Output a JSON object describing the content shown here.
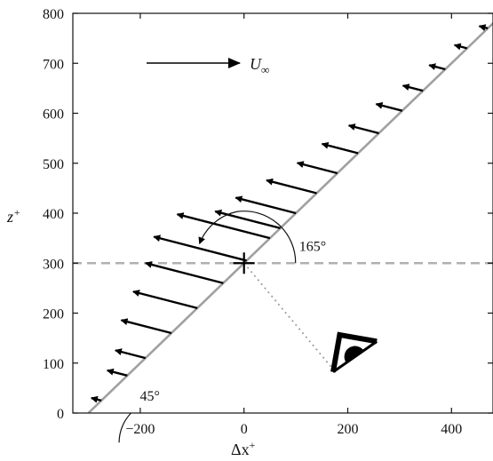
{
  "chart_data": {
    "type": "line",
    "xlabel_base": "Δx",
    "xlabel_sup": "+",
    "ylabel_base": "z",
    "ylabel_sup": "+",
    "xlim": [
      -330,
      480
    ],
    "ylim": [
      0,
      800
    ],
    "xticks": [
      -200,
      0,
      200,
      400
    ],
    "yticks": [
      0,
      100,
      200,
      300,
      400,
      500,
      600,
      700,
      800
    ],
    "xtick_labels": [
      "−200",
      "0",
      "200",
      "400"
    ],
    "ytick_labels": [
      "0",
      "100",
      "200",
      "300",
      "400",
      "500",
      "600",
      "700",
      "800"
    ],
    "grid": false,
    "inclined_line": {
      "points": [
        [
          -300,
          0
        ],
        [
          500,
          800
        ]
      ],
      "color": "#a0a0a0"
    },
    "reference_line": {
      "y": 300,
      "style": "dashed",
      "color": "#b0b0b0"
    },
    "center_marker": {
      "x": 0,
      "y": 300,
      "symbol": "+"
    },
    "freestream": {
      "label_base": "U",
      "label_sub": "∞",
      "direction": "+x"
    },
    "angle_annotations": [
      {
        "label": "45°",
        "vertex": [
          -300,
          0
        ]
      },
      {
        "label": "165°",
        "vertex": [
          0,
          300
        ]
      }
    ],
    "vectors": [
      {
        "z": 25,
        "length": 20
      },
      {
        "z": 75,
        "length": 40
      },
      {
        "z": 110,
        "length": 60
      },
      {
        "z": 160,
        "length": 100
      },
      {
        "z": 210,
        "length": 128
      },
      {
        "z": 260,
        "length": 155
      },
      {
        "z": 305,
        "length": 185
      },
      {
        "z": 350,
        "length": 185
      },
      {
        "z": 370,
        "length": 130
      },
      {
        "z": 400,
        "length": 120
      },
      {
        "z": 440,
        "length": 100
      },
      {
        "z": 480,
        "length": 80
      },
      {
        "z": 520,
        "length": 72
      },
      {
        "z": 560,
        "length": 60
      },
      {
        "z": 605,
        "length": 52
      },
      {
        "z": 645,
        "length": 40
      },
      {
        "z": 688,
        "length": 32
      },
      {
        "z": 730,
        "length": 25
      },
      {
        "z": 770,
        "length": 17
      }
    ],
    "vector_angle_deg": 165,
    "observer_eye": {
      "symbol": "eye",
      "view_line_from": [
        0,
        300
      ],
      "view_line_to": [
        170,
        90
      ]
    }
  }
}
